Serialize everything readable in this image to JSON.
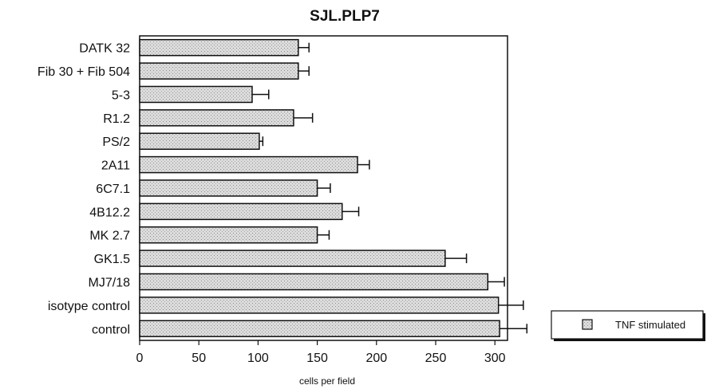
{
  "chart_data": {
    "type": "bar",
    "orientation": "horizontal",
    "title": "SJL.PLP7",
    "xlabel": "cells per field",
    "ylabel": "",
    "xlim": [
      0,
      330
    ],
    "xticks": [
      0,
      50,
      100,
      150,
      200,
      250,
      300
    ],
    "categories": [
      "DATK 32",
      "Fib 30 + Fib 504",
      "5-3",
      "R1.2",
      "PS/2",
      "2A11",
      "6C7.1",
      "4B12.2",
      "MK 2.7",
      "GK1.5",
      "MJ7/18",
      "isotype control",
      "control"
    ],
    "series": [
      {
        "name": "TNF stimulated",
        "values": [
          134,
          134,
          95,
          130,
          101,
          184,
          150,
          171,
          150,
          258,
          294,
          303,
          304
        ],
        "errors": [
          9,
          9,
          14,
          16,
          3,
          10,
          11,
          14,
          10,
          18,
          14,
          21,
          23
        ]
      }
    ],
    "legend_position": "right",
    "grid": false
  }
}
